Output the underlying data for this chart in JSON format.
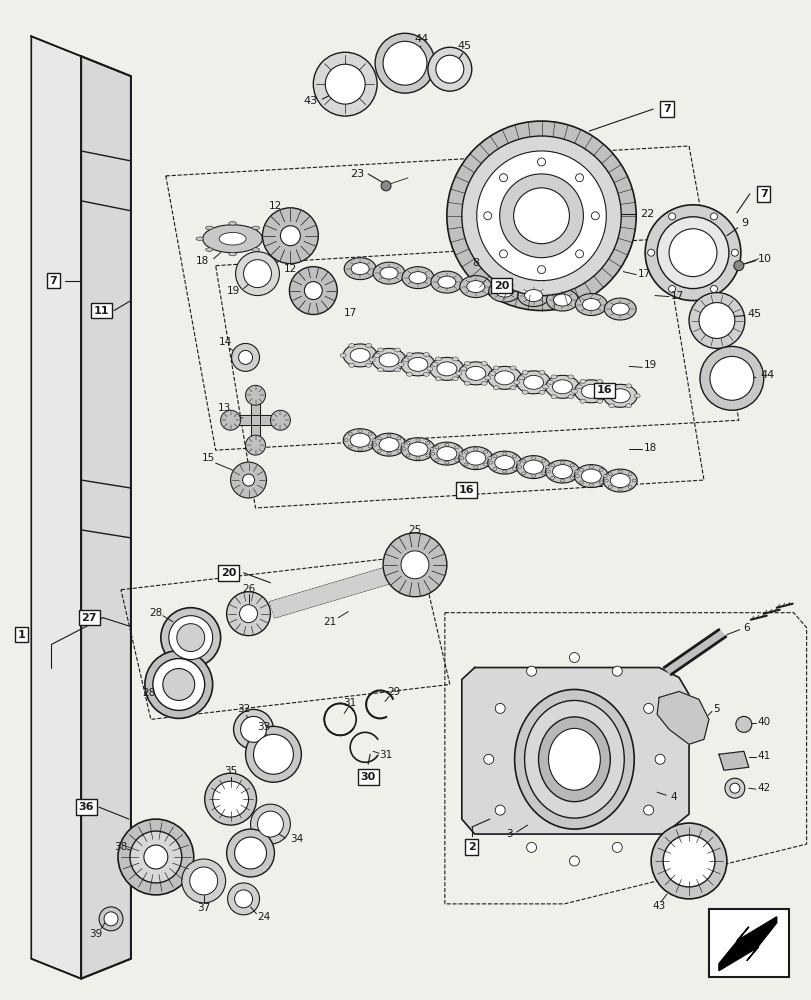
{
  "bg_color": "#f0f0eb",
  "line_color": "#1a1a1a",
  "figsize": [
    8.12,
    10.0
  ],
  "dpi": 100
}
